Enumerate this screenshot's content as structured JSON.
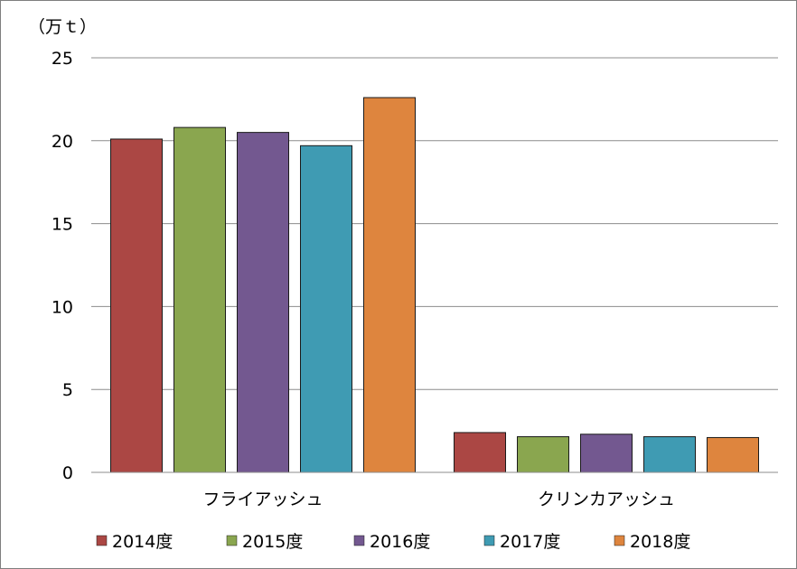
{
  "chart_data": {
    "type": "bar",
    "title": "",
    "xlabel": "",
    "ylabel": "（万ｔ）",
    "categories": [
      "フライアッシュ",
      "クリンカアッシュ"
    ],
    "series": [
      {
        "name": "2014度",
        "color": "#AB4744",
        "values": [
          20.1,
          2.4
        ]
      },
      {
        "name": "2015度",
        "color": "#8AA64F",
        "values": [
          20.8,
          2.15
        ]
      },
      {
        "name": "2016度",
        "color": "#735890",
        "values": [
          20.5,
          2.3
        ]
      },
      {
        "name": "2017度",
        "color": "#3F9BB3",
        "values": [
          19.7,
          2.15
        ]
      },
      {
        "name": "2018度",
        "color": "#DE853E",
        "values": [
          22.6,
          2.1
        ]
      }
    ],
    "ylim": [
      0,
      25
    ],
    "yticks": [
      0,
      5,
      10,
      15,
      20,
      25
    ],
    "grid": true,
    "legend_position": "bottom"
  }
}
